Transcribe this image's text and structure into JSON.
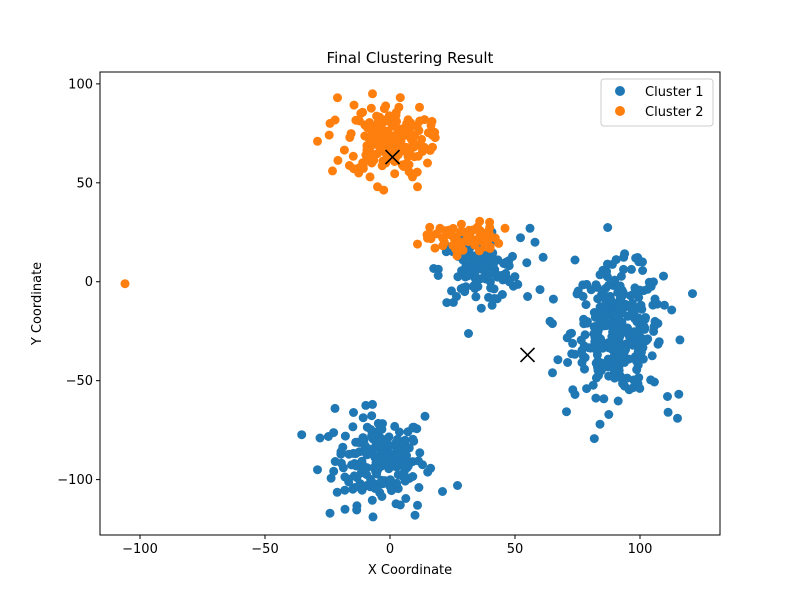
{
  "chart_data": {
    "type": "scatter",
    "title": "Final Clustering Result",
    "xlabel": "X Coordinate",
    "ylabel": "Y Coordinate",
    "xlim": [
      -116,
      132
    ],
    "ylim": [
      -128,
      106
    ],
    "xticks": [
      -100,
      -50,
      0,
      50,
      100
    ],
    "yticks": [
      -100,
      -50,
      0,
      50,
      100
    ],
    "xtick_labels": [
      "−100",
      "−50",
      "0",
      "50",
      "100"
    ],
    "ytick_labels": [
      "−100",
      "−50",
      "0",
      "50",
      "100"
    ],
    "grid": false,
    "legend_position": "top-right",
    "series": [
      {
        "name": "Cluster 1",
        "color": "#1f77b4",
        "groups": [
          {
            "cx": -4,
            "cy": -90,
            "sx": 9,
            "sy": 11,
            "n": 190
          },
          {
            "cx": 91,
            "cy": -25,
            "sx": 9,
            "sy": 16,
            "n": 300
          },
          {
            "cx": 36,
            "cy": 6,
            "sx": 8,
            "sy": 8,
            "n": 130
          }
        ],
        "points": [
          [
            -29,
            -95
          ],
          [
            -28,
            -79
          ],
          [
            -24,
            -117
          ],
          [
            -22,
            -64
          ],
          [
            -18,
            -115
          ],
          [
            -7,
            -62
          ],
          [
            10,
            -118
          ],
          [
            11,
            -113
          ],
          [
            21,
            -106
          ],
          [
            27,
            -103
          ],
          [
            14,
            -68
          ],
          [
            121,
            -6
          ],
          [
            115,
            -69
          ],
          [
            84,
            -72
          ],
          [
            74,
            -57
          ],
          [
            65,
            -46
          ],
          [
            64,
            -20
          ],
          [
            60,
            -4
          ],
          [
            58,
            20
          ],
          [
            56,
            27
          ],
          [
            74,
            11
          ],
          [
            101,
            10
          ],
          [
            111,
            -58
          ]
        ]
      },
      {
        "name": "Cluster 2",
        "color": "#ff7f0e",
        "groups": [
          {
            "cx": -1,
            "cy": 72,
            "sx": 8,
            "sy": 9,
            "n": 180
          },
          {
            "cx": 30,
            "cy": 22,
            "sx": 7,
            "sy": 4,
            "n": 65
          }
        ],
        "points": [
          [
            -106,
            -1
          ],
          [
            -29,
            71
          ],
          [
            -24,
            80
          ],
          [
            -23,
            56
          ],
          [
            -21,
            93
          ],
          [
            -7,
            95
          ],
          [
            -8,
            53
          ],
          [
            -5,
            48
          ],
          [
            9,
            53
          ],
          [
            11,
            48
          ],
          [
            17,
            74
          ],
          [
            17,
            68
          ],
          [
            15,
            60
          ],
          [
            11,
            19
          ],
          [
            15,
            22
          ],
          [
            18,
            17
          ],
          [
            20,
            27
          ],
          [
            46,
            27
          ]
        ]
      }
    ],
    "centroids": [
      {
        "x": 1,
        "y": 63
      },
      {
        "x": 55,
        "y": -37
      }
    ]
  }
}
